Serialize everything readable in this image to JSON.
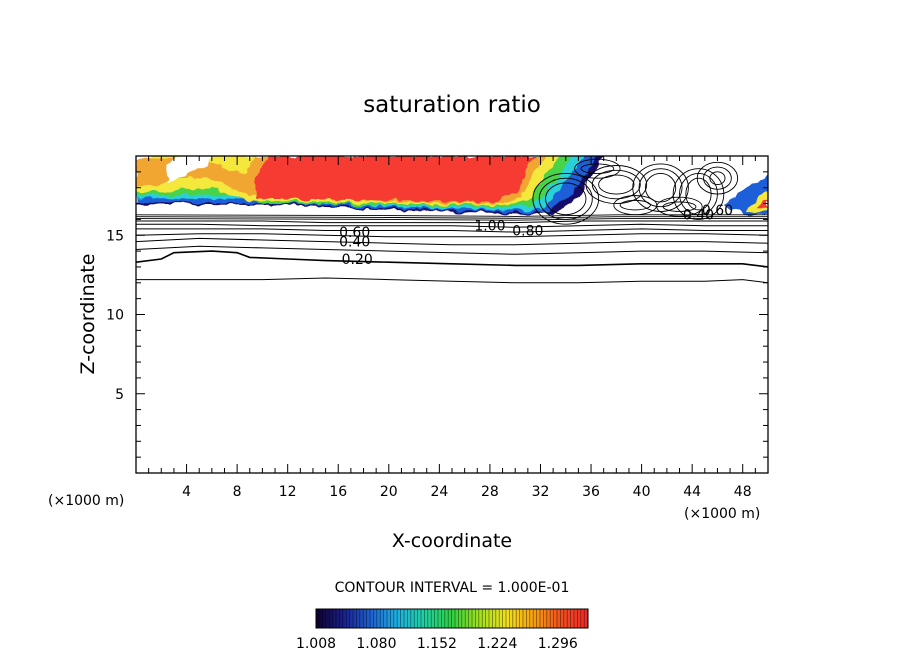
{
  "chart_data": {
    "type": "contour",
    "title": "saturation ratio",
    "xlabel": "X-coordinate",
    "ylabel": "Z-coordinate",
    "x_unit_left": "(×1000 m)",
    "x_unit_right": "(×1000 m)",
    "xlim": [
      0,
      50
    ],
    "ylim": [
      0,
      20
    ],
    "x_ticks": [
      4,
      8,
      12,
      16,
      20,
      24,
      28,
      32,
      36,
      40,
      44,
      48
    ],
    "y_ticks": [
      5,
      10,
      15
    ],
    "contour_interval_label": "CONTOUR INTERVAL = 1.000E-01",
    "contour_labels": [
      {
        "text": "0.20",
        "x": 17.5,
        "z": 13.5
      },
      {
        "text": "0.40",
        "x": 17.3,
        "z": 14.6
      },
      {
        "text": "0.60",
        "x": 17.3,
        "z": 15.2
      },
      {
        "text": "1.00",
        "x": 28.0,
        "z": 15.6
      },
      {
        "text": "0.80",
        "x": 31.0,
        "z": 15.3
      },
      {
        "text": "0.40",
        "x": 44.5,
        "z": 16.3
      },
      {
        "text": "0.60",
        "x": 46.0,
        "z": 16.6
      }
    ],
    "contour_lines": [
      {
        "level": 0.1,
        "points": [
          [
            0,
            12.2
          ],
          [
            5,
            12.2
          ],
          [
            10,
            12.2
          ],
          [
            15,
            12.3
          ],
          [
            20,
            12.2
          ],
          [
            25,
            12.1
          ],
          [
            30,
            12.0
          ],
          [
            35,
            12.0
          ],
          [
            40,
            12.1
          ],
          [
            45,
            12.1
          ],
          [
            48,
            12.2
          ],
          [
            50,
            12.0
          ]
        ]
      },
      {
        "level": 0.2,
        "points": [
          [
            0,
            13.3
          ],
          [
            2,
            13.5
          ],
          [
            3,
            13.9
          ],
          [
            6,
            14.0
          ],
          [
            8,
            13.9
          ],
          [
            9,
            13.6
          ],
          [
            12,
            13.5
          ],
          [
            15,
            13.4
          ],
          [
            20,
            13.3
          ],
          [
            25,
            13.2
          ],
          [
            30,
            13.1
          ],
          [
            35,
            13.1
          ],
          [
            40,
            13.2
          ],
          [
            45,
            13.2
          ],
          [
            48,
            13.2
          ],
          [
            50,
            13.0
          ]
        ]
      },
      {
        "level": 0.3,
        "points": [
          [
            0,
            14.1
          ],
          [
            5,
            14.3
          ],
          [
            10,
            14.2
          ],
          [
            15,
            14.1
          ],
          [
            20,
            14.0
          ],
          [
            25,
            13.9
          ],
          [
            30,
            13.8
          ],
          [
            35,
            13.9
          ],
          [
            40,
            14.0
          ],
          [
            45,
            14.0
          ],
          [
            50,
            13.9
          ]
        ]
      },
      {
        "level": 0.4,
        "points": [
          [
            0,
            14.6
          ],
          [
            5,
            14.8
          ],
          [
            10,
            14.7
          ],
          [
            15,
            14.6
          ],
          [
            20,
            14.5
          ],
          [
            25,
            14.4
          ],
          [
            30,
            14.4
          ],
          [
            35,
            14.5
          ],
          [
            40,
            14.6
          ],
          [
            45,
            14.6
          ],
          [
            50,
            14.5
          ]
        ]
      },
      {
        "level": 0.5,
        "points": [
          [
            0,
            15.0
          ],
          [
            5,
            15.1
          ],
          [
            10,
            15.1
          ],
          [
            15,
            15.0
          ],
          [
            20,
            14.9
          ],
          [
            25,
            14.9
          ],
          [
            30,
            14.9
          ],
          [
            35,
            15.0
          ],
          [
            40,
            15.1
          ],
          [
            45,
            15.1
          ],
          [
            50,
            15.0
          ]
        ]
      },
      {
        "level": 0.6,
        "points": [
          [
            0,
            15.4
          ],
          [
            5,
            15.4
          ],
          [
            10,
            15.4
          ],
          [
            15,
            15.3
          ],
          [
            20,
            15.3
          ],
          [
            25,
            15.3
          ],
          [
            30,
            15.2
          ],
          [
            35,
            15.3
          ],
          [
            40,
            15.4
          ],
          [
            45,
            15.3
          ],
          [
            50,
            15.3
          ]
        ]
      },
      {
        "level": 0.7,
        "points": [
          [
            0,
            15.7
          ],
          [
            5,
            15.7
          ],
          [
            10,
            15.6
          ],
          [
            15,
            15.6
          ],
          [
            20,
            15.6
          ],
          [
            25,
            15.6
          ],
          [
            30,
            15.5
          ],
          [
            35,
            15.6
          ],
          [
            40,
            15.7
          ],
          [
            45,
            15.6
          ],
          [
            50,
            15.6
          ]
        ]
      },
      {
        "level": 0.8,
        "points": [
          [
            0,
            15.9
          ],
          [
            5,
            15.9
          ],
          [
            10,
            15.9
          ],
          [
            15,
            15.8
          ],
          [
            20,
            15.8
          ],
          [
            25,
            15.8
          ],
          [
            30,
            15.8
          ],
          [
            35,
            15.9
          ],
          [
            40,
            15.9
          ],
          [
            45,
            15.9
          ],
          [
            50,
            15.9
          ]
        ]
      }
    ],
    "colorbar": {
      "min": 1.008,
      "max": 1.332,
      "tick_labels": [
        "1.008",
        "1.080",
        "1.152",
        "1.224",
        "1.296"
      ],
      "colors": [
        "#100030",
        "#1a1f8a",
        "#1e60d0",
        "#1fb0e0",
        "#20d0a0",
        "#30d040",
        "#a0e020",
        "#f0e020",
        "#f8a010",
        "#f05020",
        "#f02828"
      ]
    },
    "shaded_field": {
      "description_levels": [
        1.008,
        1.332
      ],
      "core_color": "#f53a30",
      "edge_colors": [
        "#f2a630",
        "#f3e83a",
        "#4ad348",
        "#2ad0d8",
        "#1d5ed8",
        "#140d6a"
      ]
    }
  }
}
